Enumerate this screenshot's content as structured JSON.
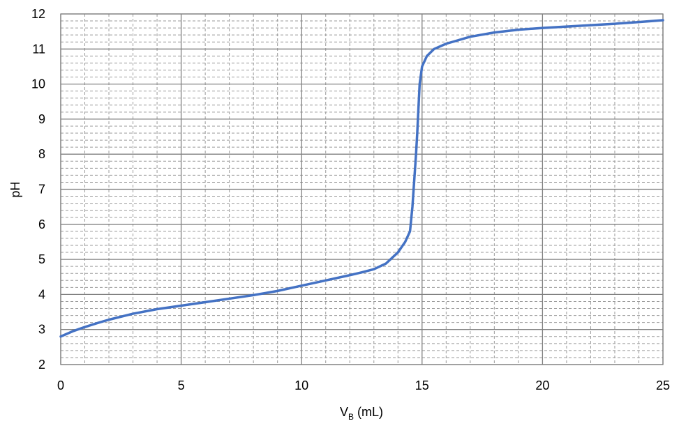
{
  "chart_data": {
    "type": "line",
    "title": "",
    "xlabel_main": "V",
    "xlabel_sub": "B",
    "xlabel_unit": " (mL)",
    "ylabel": "pH",
    "xlim": [
      0,
      25
    ],
    "ylim": [
      2,
      12
    ],
    "x_ticks": [
      "0",
      "5",
      "10",
      "15",
      "20",
      "25"
    ],
    "y_ticks": [
      "2",
      "3",
      "4",
      "5",
      "6",
      "7",
      "8",
      "9",
      "10",
      "11",
      "12"
    ],
    "grid": true,
    "minor_grid": true,
    "line_color": "#4472C4",
    "series": [
      {
        "x": [
          0,
          0.5,
          1,
          1.5,
          2,
          3,
          4,
          5,
          6,
          7,
          8,
          9,
          10,
          11,
          12,
          12.5,
          13,
          13.5,
          14,
          14.3,
          14.5,
          14.6,
          14.65,
          14.7,
          14.75,
          14.8,
          14.85,
          14.9,
          15,
          15.2,
          15.5,
          16,
          17,
          18,
          19,
          20,
          21,
          22,
          23,
          24,
          25
        ],
        "y": [
          2.8,
          2.95,
          3.07,
          3.18,
          3.28,
          3.45,
          3.58,
          3.68,
          3.78,
          3.88,
          3.98,
          4.1,
          4.25,
          4.4,
          4.55,
          4.63,
          4.72,
          4.88,
          5.2,
          5.5,
          5.8,
          6.5,
          7.0,
          7.5,
          8.0,
          8.6,
          9.3,
          10.0,
          10.5,
          10.8,
          11.0,
          11.15,
          11.35,
          11.47,
          11.55,
          11.6,
          11.64,
          11.68,
          11.72,
          11.77,
          11.82
        ]
      }
    ]
  }
}
